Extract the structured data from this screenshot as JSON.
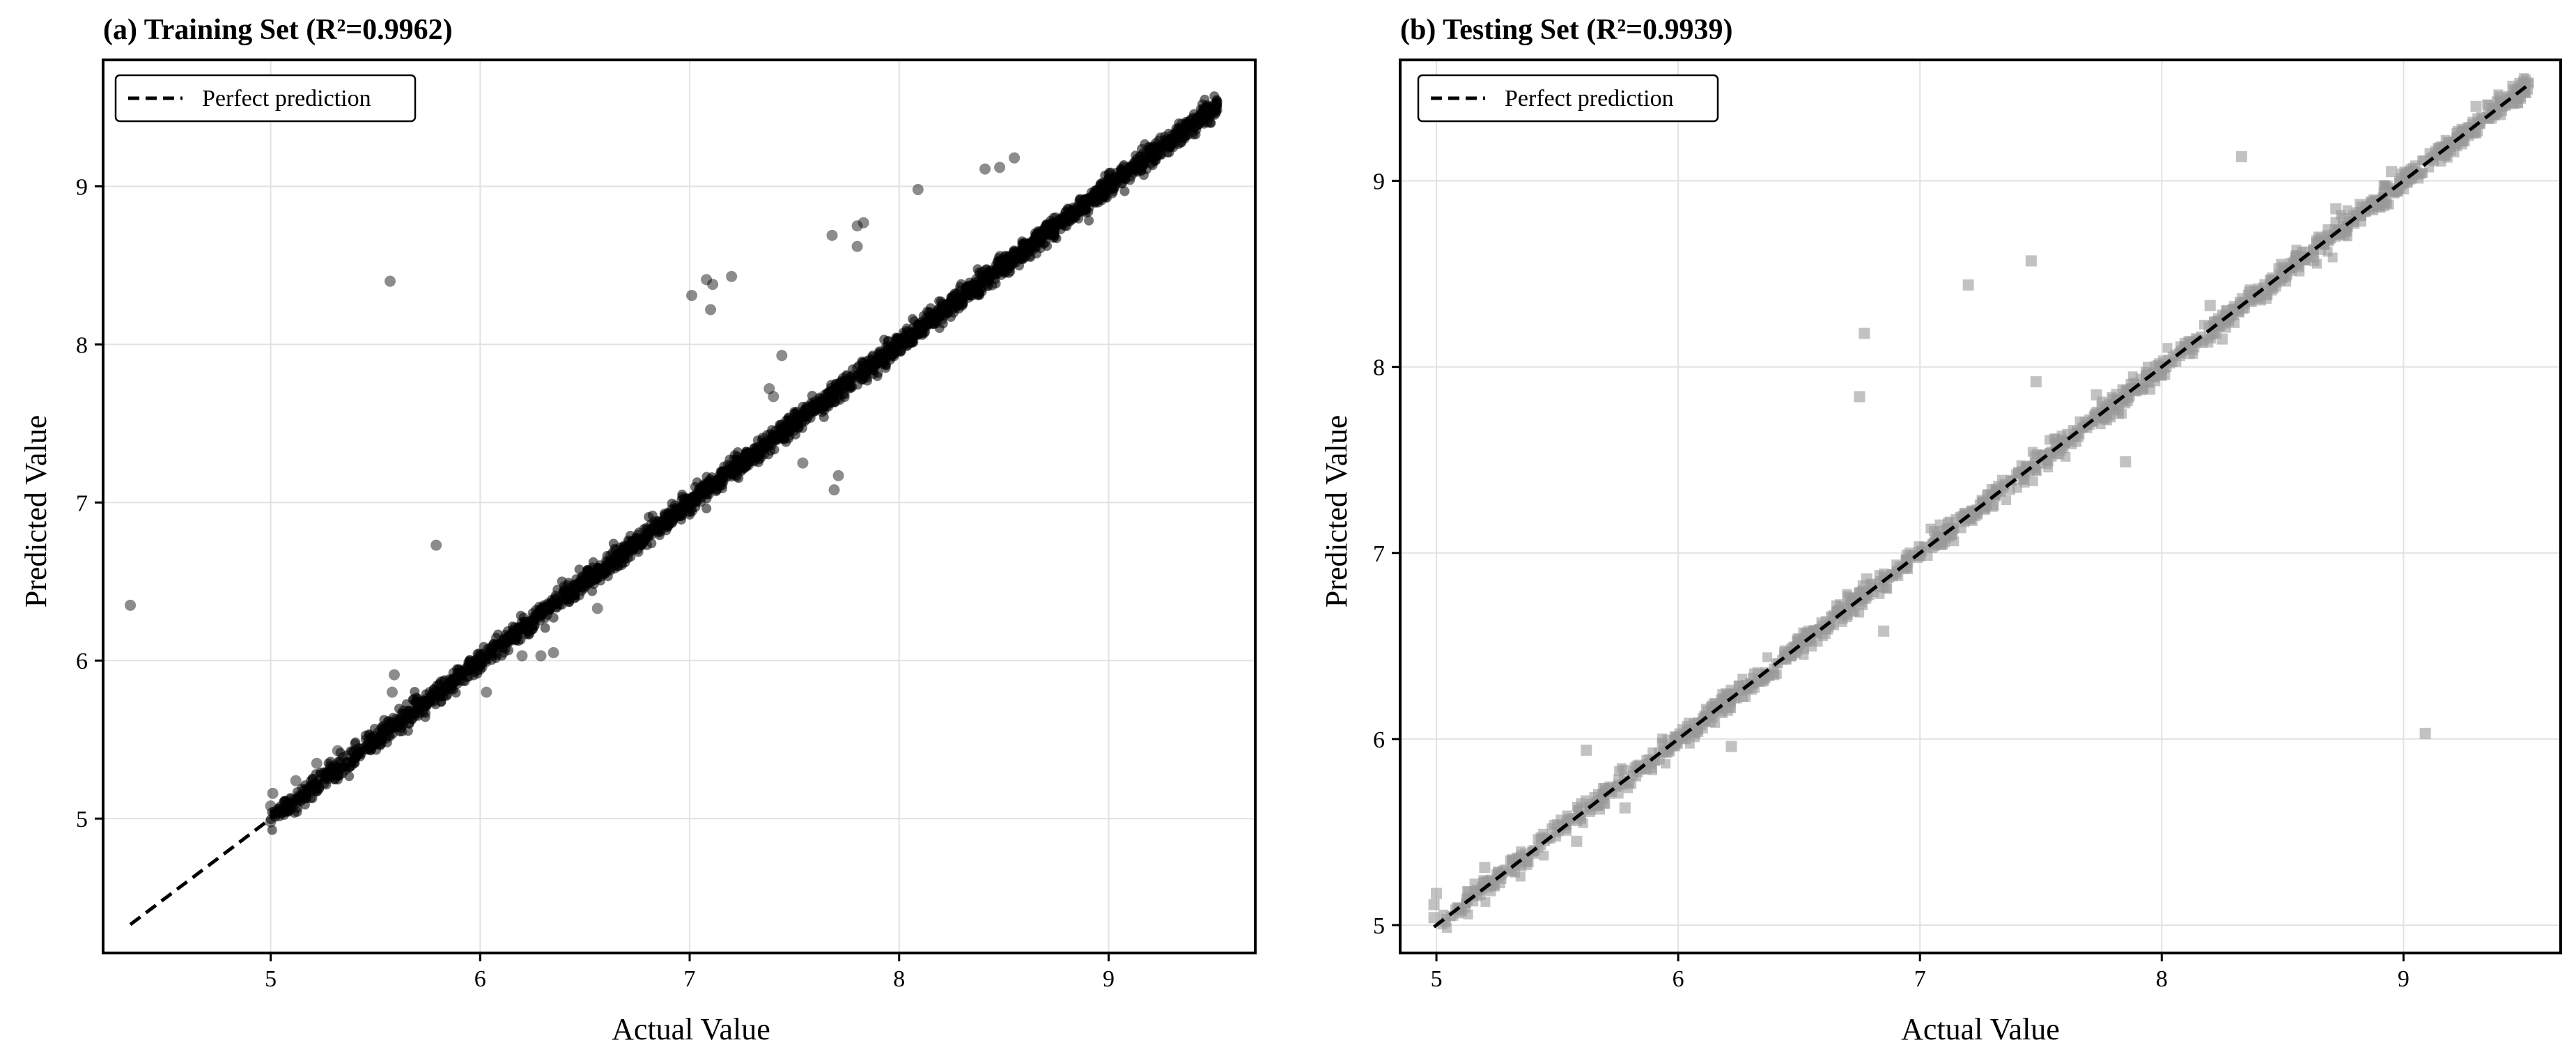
{
  "chart_data": [
    {
      "type": "scatter",
      "title": "(a) Training Set (R²=0.9962)",
      "xlabel": "Actual Value",
      "ylabel": "Predicted Value",
      "xlim": [
        4.2,
        9.7
      ],
      "ylim": [
        4.15,
        9.8
      ],
      "xticks": [
        "5",
        "6",
        "7",
        "8",
        "9"
      ],
      "yticks": [
        "5",
        "6",
        "7",
        "8",
        "9"
      ],
      "grid": true,
      "legend_position": "top-left",
      "marker": "circle",
      "marker_color": "#000000",
      "legend": [
        "Perfect prediction"
      ],
      "reference_line": {
        "label": "Perfect prediction",
        "from": [
          4.33,
          4.33
        ],
        "to": [
          9.52,
          9.52
        ]
      },
      "points": [
        [
          4.33,
          6.35
        ],
        [
          5.57,
          8.4
        ],
        [
          5.79,
          6.73
        ],
        [
          7.01,
          8.31
        ],
        [
          7.08,
          8.41
        ],
        [
          7.11,
          8.38
        ],
        [
          7.2,
          8.43
        ],
        [
          7.1,
          8.22
        ],
        [
          7.68,
          8.69
        ],
        [
          7.8,
          8.75
        ],
        [
          7.83,
          8.77
        ],
        [
          7.8,
          8.62
        ],
        [
          8.41,
          9.11
        ],
        [
          8.55,
          9.18
        ],
        [
          8.48,
          9.12
        ],
        [
          7.71,
          7.17
        ],
        [
          7.69,
          7.08
        ],
        [
          7.54,
          7.25
        ],
        [
          6.35,
          6.05
        ],
        [
          6.29,
          6.03
        ],
        [
          6.2,
          6.03
        ],
        [
          6.03,
          5.8
        ],
        [
          5.59,
          5.91
        ],
        [
          5.58,
          5.8
        ],
        [
          6.56,
          6.33
        ],
        [
          8.09,
          8.98
        ],
        [
          7.44,
          7.93
        ],
        [
          7.38,
          7.72
        ],
        [
          7.4,
          7.67
        ],
        [
          5.0,
          4.98
        ],
        [
          5.0,
          5.08
        ],
        [
          5.01,
          5.16
        ],
        [
          5.12,
          5.24
        ],
        [
          5.22,
          5.35
        ],
        [
          5.32,
          5.43
        ]
      ]
    },
    {
      "type": "scatter",
      "title": "(b) Testing Set (R²=0.9939)",
      "xlabel": "Actual Value",
      "ylabel": "Predicted Value",
      "xlim": [
        4.85,
        9.65
      ],
      "ylim": [
        4.85,
        9.65
      ],
      "xticks": [
        "5",
        "6",
        "7",
        "8",
        "9"
      ],
      "yticks": [
        "5",
        "6",
        "7",
        "8",
        "9"
      ],
      "grid": true,
      "legend_position": "top-left",
      "marker": "square",
      "marker_color": "#9a9a9a",
      "legend": [
        "Perfect prediction"
      ],
      "reference_line": {
        "label": "Perfect prediction",
        "from": [
          4.99,
          4.99
        ],
        "to": [
          9.52,
          9.52
        ]
      },
      "points": [
        [
          8.33,
          9.13
        ],
        [
          7.46,
          8.57
        ],
        [
          7.2,
          8.44
        ],
        [
          6.77,
          8.18
        ],
        [
          6.75,
          7.84
        ],
        [
          7.85,
          7.49
        ],
        [
          7.48,
          7.92
        ],
        [
          9.09,
          6.03
        ],
        [
          5.78,
          5.63
        ],
        [
          5.58,
          5.45
        ],
        [
          6.85,
          6.58
        ],
        [
          6.22,
          5.96
        ],
        [
          5.62,
          5.94
        ],
        [
          7.73,
          7.85
        ],
        [
          8.2,
          8.33
        ],
        [
          4.99,
          5.04
        ],
        [
          4.99,
          5.11
        ],
        [
          5.0,
          5.17
        ],
        [
          5.15,
          5.13
        ],
        [
          5.16,
          5.22
        ],
        [
          5.2,
          5.31
        ],
        [
          6.55,
          6.5
        ],
        [
          6.78,
          6.86
        ],
        [
          8.95,
          9.05
        ],
        [
          9.3,
          9.4
        ],
        [
          8.72,
          8.85
        ],
        [
          8.25,
          8.15
        ]
      ]
    }
  ]
}
